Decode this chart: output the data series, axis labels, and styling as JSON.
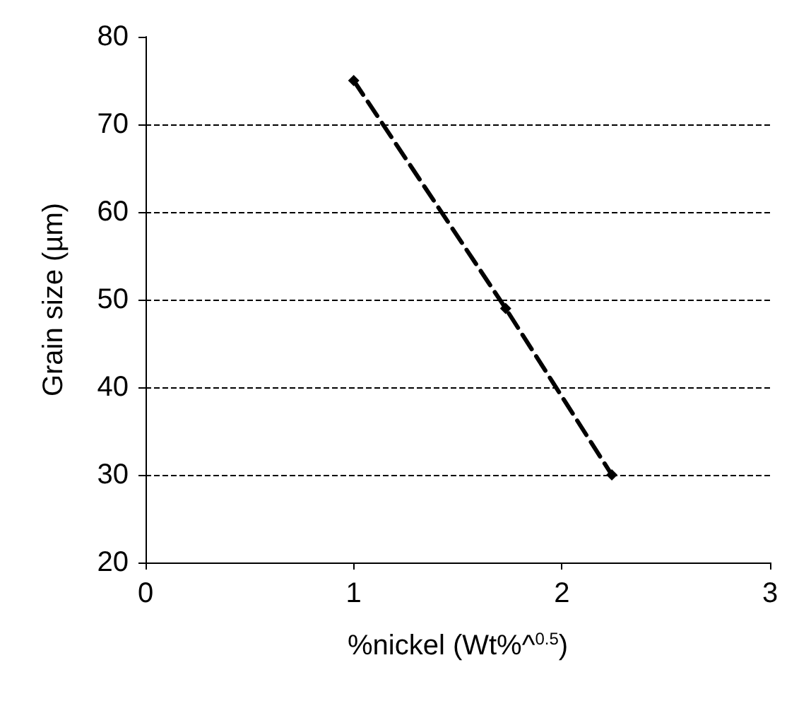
{
  "chart_data": {
    "type": "line",
    "xlabel": "%nickel (Wt%^$^{0.5}$)",
    "ylabel": "Grain size (µm)",
    "x": [
      1,
      1.73,
      2.24
    ],
    "series": [
      {
        "color": "#000000",
        "values": [
          75,
          49,
          30
        ]
      }
    ],
    "xlim": [
      0,
      3
    ],
    "xticks": [
      0,
      1,
      2,
      3
    ],
    "ylim": [
      20,
      80
    ],
    "yticks": [
      20,
      30,
      40,
      50,
      60,
      70,
      80
    ],
    "grid": "y",
    "marker": "diamond",
    "line_style": "dashed"
  }
}
